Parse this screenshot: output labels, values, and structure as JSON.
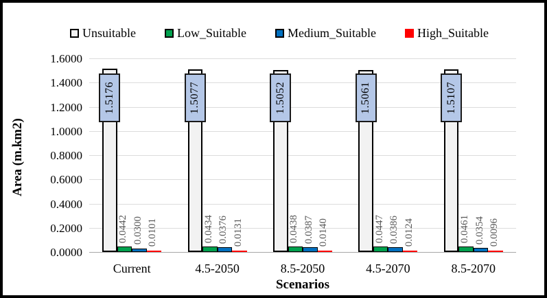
{
  "chart_data": {
    "type": "bar",
    "title": "",
    "xlabel": "Scenarios",
    "ylabel": "Area (m.km2)",
    "categories": [
      "Current",
      "4.5-2050",
      "8.5-2050",
      "4.5-2070",
      "8.5-2070"
    ],
    "series": [
      {
        "name": "Unsuitable",
        "color": "#F2F2F2",
        "border": "#000000",
        "values": [
          1.5176,
          1.5077,
          1.5052,
          1.5061,
          1.5107
        ]
      },
      {
        "name": "Low_Suitable",
        "color": "#00A14E",
        "border": "#000000",
        "values": [
          0.0442,
          0.0434,
          0.0438,
          0.0447,
          0.0461
        ]
      },
      {
        "name": "Medium_Suitable",
        "color": "#0070C0",
        "border": "#000000",
        "values": [
          0.03,
          0.0376,
          0.0387,
          0.0386,
          0.0354
        ]
      },
      {
        "name": "High_Suitable",
        "color": "#FF0000",
        "border": "",
        "values": [
          0.0101,
          0.0131,
          0.014,
          0.0124,
          0.0096
        ]
      }
    ],
    "ylim": [
      0,
      1.6
    ],
    "yticks": [
      "0.0000",
      "0.2000",
      "0.4000",
      "0.6000",
      "0.8000",
      "1.0000",
      "1.2000",
      "1.4000",
      "1.6000"
    ],
    "grid": true,
    "legend_position": "top",
    "label_decimals": 4,
    "colors": {
      "callout_fill": "#B4C7E7",
      "callout_border": "#1A1A1A",
      "small_label": "#595959",
      "gridline": "#DCDCDC",
      "axis_line": "#A6A6A6"
    }
  }
}
